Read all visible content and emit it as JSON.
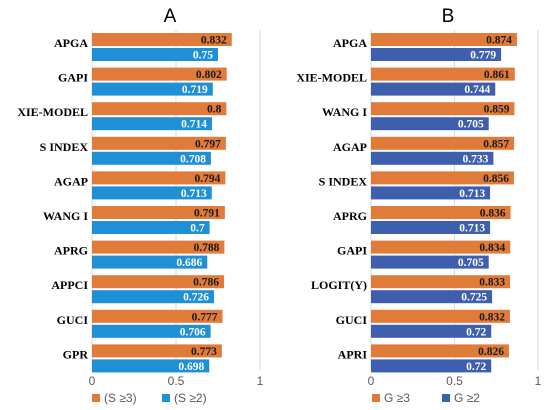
{
  "chart_data": [
    {
      "type": "bar",
      "orientation": "horizontal",
      "title": "A",
      "categories": [
        "APGA",
        "GAPI",
        "XIE-MODEL",
        "S INDEX",
        "AGAP",
        "WANG I",
        "APRG",
        "APPCI",
        "GUCI",
        "GPR"
      ],
      "series": [
        {
          "name": "(S ≥3)",
          "color": "#E07B39",
          "values": [
            0.832,
            0.802,
            0.8,
            0.797,
            0.794,
            0.791,
            0.788,
            0.786,
            0.777,
            0.773
          ]
        },
        {
          "name": "(S ≥2)",
          "color": "#1F8FD6",
          "values": [
            0.75,
            0.719,
            0.714,
            0.708,
            0.713,
            0.7,
            0.686,
            0.726,
            0.706,
            0.698
          ]
        }
      ],
      "value_labels": [
        [
          "0.832",
          "0.802",
          "0.8",
          "0.797",
          "0.794",
          "0.791",
          "0.788",
          "0.786",
          "0.777",
          "0.773"
        ],
        [
          "0.75",
          "0.719",
          "0.714",
          "0.708",
          "0.713",
          "0.7",
          "0.686",
          "0.726",
          "0.706",
          "0.698"
        ]
      ],
      "xlim": [
        0,
        1
      ],
      "x_ticks": [
        "0",
        "0.5",
        "1"
      ],
      "grid": true,
      "legend_position": "bottom"
    },
    {
      "type": "bar",
      "orientation": "horizontal",
      "title": "B",
      "categories": [
        "APGA",
        "XIE-MODEL",
        "WANG I",
        "AGAP",
        "S INDEX",
        "APRG",
        "GAPI",
        "LOGIT(Y)",
        "GUCI",
        "APRI"
      ],
      "series": [
        {
          "name": "G ≥3",
          "color": "#E07B39",
          "values": [
            0.874,
            0.861,
            0.859,
            0.857,
            0.856,
            0.836,
            0.834,
            0.833,
            0.832,
            0.826
          ]
        },
        {
          "name": "G ≥2",
          "color": "#3E5FAE",
          "values": [
            0.779,
            0.744,
            0.705,
            0.733,
            0.713,
            0.713,
            0.705,
            0.725,
            0.72,
            0.72
          ]
        }
      ],
      "value_labels": [
        [
          "0.874",
          "0.861",
          "0.859",
          "0.857",
          "0.856",
          "0.836",
          "0.834",
          "0.833",
          "0.832",
          "0.826"
        ],
        [
          "0.779",
          "0.744",
          "0.705",
          "0.733",
          "0.713",
          "0.713",
          "0.705",
          "0.725",
          "0.72",
          "0.72"
        ]
      ],
      "xlim": [
        0,
        1
      ],
      "x_ticks": [
        "0",
        "0.5",
        "1"
      ],
      "grid": true,
      "legend_position": "bottom"
    }
  ]
}
